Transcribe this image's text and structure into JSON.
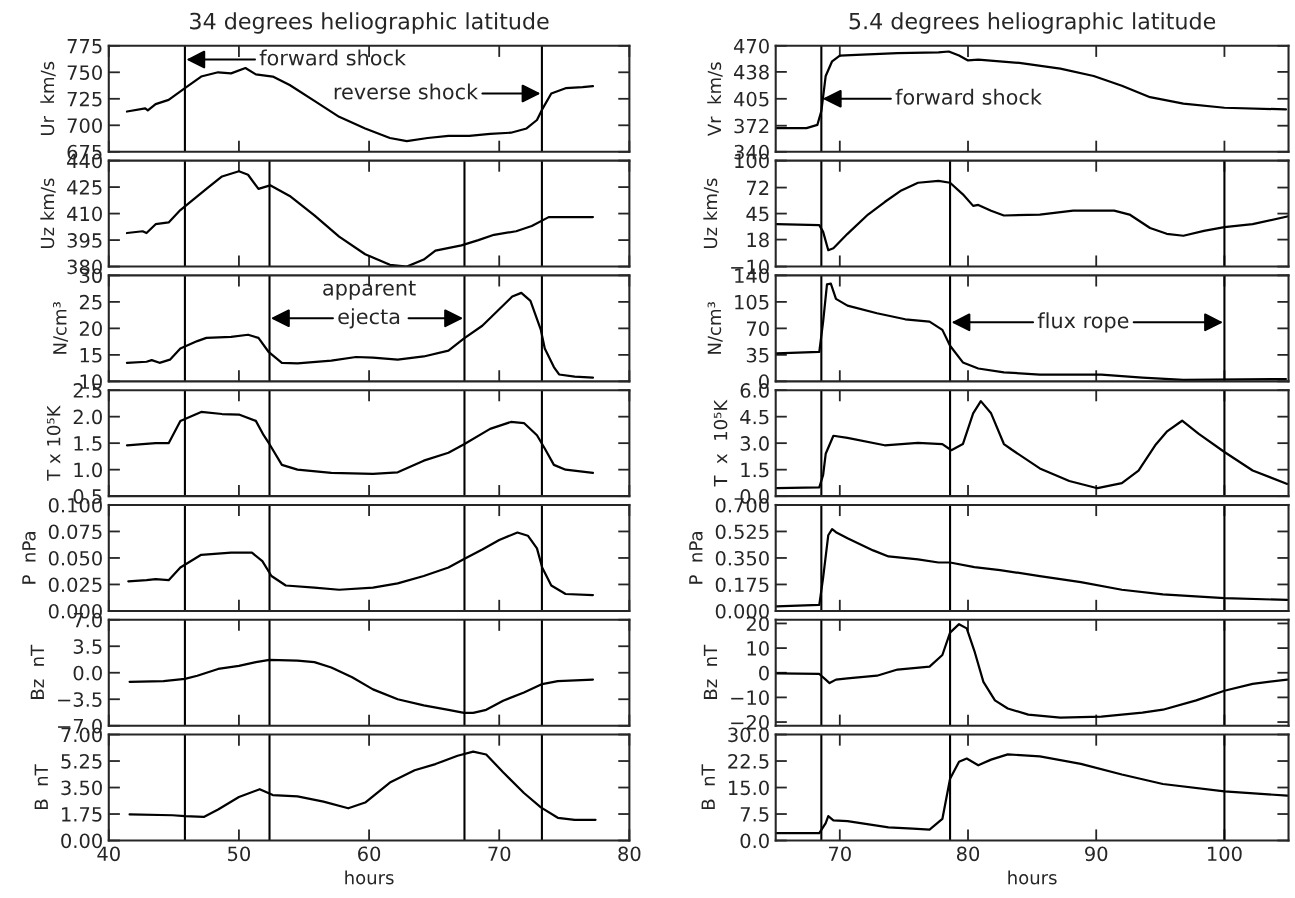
{
  "chart_data": [
    {
      "type": "line",
      "title": "34 degrees heliographic latitude",
      "ylabel": "Ur  km/s",
      "xlim": [
        40,
        80
      ],
      "xticks": [
        40,
        50,
        60,
        70,
        80
      ],
      "ylim": [
        675,
        775
      ],
      "yticks": [
        675,
        700,
        725,
        750,
        775
      ],
      "tick_labels": "y",
      "x": [
        41.4,
        42.8,
        43.0,
        43.6,
        44.6,
        45.85,
        47.1,
        48.4,
        49.4,
        50.5,
        51.3,
        52.6,
        53.9,
        55.8,
        57.7,
        59.7,
        61.6,
        62.9,
        64.5,
        66.1,
        67.7,
        69.3,
        70.9,
        72.1,
        72.9,
        73.3,
        74.0,
        75.1,
        76.4,
        77.2
      ],
      "series": [
        {
          "color": "#000000",
          "values": [
            713,
            716,
            714,
            720,
            724,
            735,
            746,
            750,
            749,
            754,
            748,
            746,
            738,
            723,
            708,
            697,
            688,
            685,
            688,
            690,
            690,
            692,
            693,
            697,
            705,
            715,
            730,
            735,
            736,
            737
          ]
        }
      ],
      "ref_lines": [
        {
          "axis": "x",
          "value": 45.85
        },
        {
          "axis": "x",
          "value": 73.28
        }
      ],
      "annotations": [
        "forward shock",
        "reverse shock"
      ]
    },
    {
      "type": "line",
      "ylabel": "Uz km/s",
      "xlim": [
        40,
        80
      ],
      "xticks": [
        40,
        50,
        60,
        70,
        80
      ],
      "ylim": [
        380,
        440
      ],
      "yticks": [
        380,
        395,
        410,
        425,
        440
      ],
      "tick_labels": "y",
      "x": [
        41.4,
        42.6,
        42.9,
        43.6,
        44.6,
        45.5,
        47.5,
        48.7,
        50.0,
        50.7,
        51.5,
        52.4,
        53.9,
        55.8,
        57.7,
        59.7,
        61.6,
        62.9,
        64.2,
        65.1,
        67.1,
        68.4,
        69.6,
        71.3,
        72.5,
        73.8,
        75.1,
        77.2
      ],
      "series": [
        {
          "color": "#000000",
          "values": [
            399,
            400,
            399,
            404,
            405,
            412,
            424,
            431,
            434,
            432,
            424,
            426,
            420,
            409,
            397,
            387,
            381,
            380,
            384,
            389,
            392,
            395,
            398,
            400,
            403,
            408,
            408,
            408
          ]
        }
      ],
      "ref_lines": [
        {
          "axis": "x",
          "value": 45.85
        },
        {
          "axis": "x",
          "value": 52.35
        },
        {
          "axis": "x",
          "value": 67.33
        },
        {
          "axis": "x",
          "value": 73.28
        }
      ]
    },
    {
      "type": "line",
      "ylabel": "N/cm³",
      "xlim": [
        40,
        80
      ],
      "xticks": [
        40,
        50,
        60,
        70,
        80
      ],
      "ylim": [
        10,
        30
      ],
      "yticks": [
        10,
        15,
        20,
        25,
        30
      ],
      "tick_labels": "y",
      "x": [
        41.4,
        42.9,
        43.3,
        43.9,
        44.7,
        45.5,
        46.8,
        47.5,
        49.4,
        50.7,
        51.5,
        52.3,
        53.3,
        54.5,
        57.1,
        59.0,
        60.3,
        62.2,
        64.2,
        66.1,
        67.3,
        68.7,
        70.0,
        71.0,
        71.7,
        72.4,
        73.2,
        73.5,
        74.2,
        74.6,
        75.8,
        77.2
      ],
      "series": [
        {
          "color": "#000000",
          "values": [
            13.5,
            13.7,
            14.0,
            13.5,
            14.1,
            16.2,
            17.6,
            18.2,
            18.4,
            18.8,
            18.2,
            15.5,
            13.5,
            13.4,
            13.9,
            14.6,
            14.5,
            14.1,
            14.7,
            15.8,
            18.1,
            20.5,
            23.6,
            26.0,
            26.7,
            25.2,
            19.7,
            16.2,
            12.7,
            11.3,
            10.9,
            10.7
          ]
        }
      ],
      "ref_lines": [
        {
          "axis": "x",
          "value": 45.85
        },
        {
          "axis": "x",
          "value": 52.35
        },
        {
          "axis": "x",
          "value": 67.33
        },
        {
          "axis": "x",
          "value": 73.28
        }
      ],
      "annotations": [
        "apparent",
        {
          "text": "ejecta",
          "x": 67.33,
          "y": 21.9
        }
      ]
    },
    {
      "type": "line",
      "ylabel": "T x 10⁵K",
      "xlim": [
        40,
        80
      ],
      "xticks": [
        40,
        50,
        60,
        70,
        80
      ],
      "ylim": [
        0.5,
        2.5
      ],
      "yticks": [
        {
          "value": 0.5,
          "label": "0.5"
        },
        {
          "value": 1.0,
          "label": "1.0"
        },
        {
          "value": 1.5,
          "label": "1.5"
        },
        {
          "value": 2.0,
          "label": "2.0"
        },
        {
          "value": 2.5,
          "label": "2.5"
        }
      ],
      "tick_labels": "y",
      "x": [
        41.4,
        42.6,
        43.6,
        44.6,
        45.5,
        47.1,
        48.7,
        50.0,
        51.3,
        51.9,
        52.35,
        53.3,
        54.5,
        57.1,
        60.3,
        62.2,
        64.2,
        66.1,
        67.3,
        69.3,
        70.9,
        71.9,
        72.9,
        73.5,
        74.2,
        75.1,
        77.2
      ],
      "series": [
        {
          "color": "#000000",
          "values": [
            1.46,
            1.48,
            1.5,
            1.5,
            1.92,
            2.09,
            2.05,
            2.04,
            1.92,
            1.65,
            1.48,
            1.09,
            1.0,
            0.94,
            0.92,
            0.95,
            1.17,
            1.32,
            1.48,
            1.77,
            1.9,
            1.88,
            1.65,
            1.4,
            1.09,
            1.0,
            0.94
          ]
        }
      ],
      "ref_lines": [
        {
          "axis": "x",
          "value": 45.85
        },
        {
          "axis": "x",
          "value": 52.35
        },
        {
          "axis": "x",
          "value": 67.33
        },
        {
          "axis": "x",
          "value": 73.28
        }
      ]
    },
    {
      "type": "line",
      "ylabel": "P  nPa",
      "xlim": [
        40,
        80
      ],
      "xticks": [
        40,
        50,
        60,
        70,
        80
      ],
      "ylim": [
        0,
        0.1
      ],
      "yticks": [
        {
          "value": 0,
          "label": "0.000"
        },
        {
          "value": 0.025,
          "label": "0.025"
        },
        {
          "value": 0.05,
          "label": "0.050"
        },
        {
          "value": 0.075,
          "label": "0.075"
        },
        {
          "value": 0.1,
          "label": "0.100"
        }
      ],
      "tick_labels": "y",
      "x": [
        41.5,
        42.9,
        43.6,
        44.6,
        45.5,
        47.1,
        49.4,
        51.0,
        51.8,
        52.5,
        53.6,
        55.8,
        57.7,
        60.3,
        62.2,
        64.2,
        66.1,
        67.3,
        68.7,
        70.0,
        71.4,
        72.2,
        72.9,
        73.3,
        74.0,
        75.1,
        77.2
      ],
      "series": [
        {
          "color": "#000000",
          "values": [
            0.028,
            0.029,
            0.03,
            0.029,
            0.041,
            0.053,
            0.055,
            0.055,
            0.047,
            0.033,
            0.024,
            0.022,
            0.02,
            0.022,
            0.026,
            0.033,
            0.041,
            0.049,
            0.058,
            0.067,
            0.074,
            0.071,
            0.059,
            0.041,
            0.024,
            0.016,
            0.015
          ]
        }
      ],
      "ref_lines": [
        {
          "axis": "x",
          "value": 45.85
        },
        {
          "axis": "x",
          "value": 52.35
        },
        {
          "axis": "x",
          "value": 67.33
        },
        {
          "axis": "x",
          "value": 73.28
        }
      ]
    },
    {
      "type": "line",
      "ylabel": "Bz  nT",
      "xlim": [
        40,
        80
      ],
      "xticks": [
        40,
        50,
        60,
        70,
        80
      ],
      "ylim": [
        -7,
        7
      ],
      "yticks": [
        {
          "value": -7,
          "label": "−7.0"
        },
        {
          "value": -3.5,
          "label": "−3.5"
        },
        {
          "value": 0,
          "label": "0.0"
        },
        {
          "value": 3.5,
          "label": "3.5"
        },
        {
          "value": 7,
          "label": "7.0"
        }
      ],
      "tick_labels": "y",
      "x": [
        41.6,
        44.2,
        45.85,
        46.8,
        48.4,
        50.0,
        51.3,
        52.35,
        54.5,
        55.8,
        57.1,
        58.7,
        60.3,
        62.2,
        64.2,
        66.1,
        67.3,
        68.0,
        69.0,
        70.3,
        71.9,
        73.3,
        74.5,
        77.2
      ],
      "series": [
        {
          "color": "#000000",
          "values": [
            -1.2,
            -1.1,
            -0.8,
            -0.4,
            0.5,
            0.9,
            1.4,
            1.7,
            1.6,
            1.4,
            0.7,
            -0.6,
            -2.2,
            -3.5,
            -4.3,
            -4.9,
            -5.3,
            -5.3,
            -4.9,
            -3.7,
            -2.6,
            -1.5,
            -1.1,
            -0.9
          ]
        }
      ],
      "ref_lines": [
        {
          "axis": "x",
          "value": 45.85
        },
        {
          "axis": "x",
          "value": 52.35
        },
        {
          "axis": "x",
          "value": 67.33
        },
        {
          "axis": "x",
          "value": 73.28
        }
      ]
    },
    {
      "type": "line",
      "ylabel": "B  nT",
      "xlabel": "hours",
      "xlim": [
        40,
        80
      ],
      "xticks": [
        40,
        50,
        60,
        70,
        80
      ],
      "ylim": [
        0,
        7
      ],
      "yticks": [
        {
          "value": 0,
          "label": "0.00"
        },
        {
          "value": 1.75,
          "label": "1.75"
        },
        {
          "value": 3.5,
          "label": "3.50"
        },
        {
          "value": 5.25,
          "label": "5.25"
        },
        {
          "value": 7,
          "label": "7.00"
        }
      ],
      "x": [
        41.6,
        44.9,
        45.85,
        47.3,
        48.4,
        50.0,
        51.6,
        52.6,
        54.5,
        56.5,
        58.4,
        59.7,
        61.6,
        63.5,
        65.1,
        66.8,
        68.0,
        69.0,
        70.3,
        71.9,
        73.2,
        74.5,
        75.8,
        77.4
      ],
      "series": [
        {
          "color": "#000000",
          "values": [
            1.72,
            1.67,
            1.61,
            1.56,
            2.05,
            2.87,
            3.39,
            3.0,
            2.92,
            2.57,
            2.13,
            2.51,
            3.83,
            4.64,
            5.05,
            5.6,
            5.87,
            5.68,
            4.51,
            3.14,
            2.19,
            1.5,
            1.37,
            1.37
          ]
        }
      ],
      "ref_lines": [
        {
          "axis": "x",
          "value": 45.85
        },
        {
          "axis": "x",
          "value": 52.35
        },
        {
          "axis": "x",
          "value": 67.33
        },
        {
          "axis": "x",
          "value": 73.28
        }
      ]
    },
    {
      "type": "line",
      "title": "5.4 degrees heliographic latitude",
      "ylabel": "Vr  km/s",
      "xlim": [
        65,
        105
      ],
      "xticks": [
        70,
        80,
        90,
        100
      ],
      "ylim": [
        340,
        470
      ],
      "yticks": [
        340,
        372,
        405,
        438,
        470
      ],
      "tick_labels": "y",
      "x": [
        65.06,
        67.4,
        68.25,
        68.56,
        68.9,
        69.4,
        70.0,
        71.3,
        74.5,
        77.7,
        78.5,
        79.3,
        80.0,
        80.8,
        84.0,
        87.2,
        89.8,
        92.0,
        94.2,
        96.8,
        100.0,
        104.8
      ],
      "series": [
        {
          "color": "#000000",
          "values": [
            369,
            369,
            373,
            390,
            433,
            451,
            458,
            459,
            461,
            462,
            463,
            458,
            452,
            453,
            449,
            442,
            433,
            421,
            407,
            399,
            394,
            392
          ]
        }
      ],
      "ref_lines": [
        {
          "axis": "x",
          "value": 68.56
        }
      ],
      "annotations": [
        "forward shock"
      ]
    },
    {
      "type": "line",
      "ylabel": "Uz km/s",
      "xlim": [
        65,
        105
      ],
      "xticks": [
        70,
        80,
        90,
        100
      ],
      "ylim": [
        -10,
        100
      ],
      "yticks": [
        {
          "value": -10,
          "label": "−10"
        },
        18,
        45,
        72,
        100
      ],
      "tick_labels": "y",
      "x": [
        65.06,
        68.4,
        68.7,
        69.1,
        69.5,
        70.6,
        72.2,
        73.5,
        74.8,
        76.1,
        77.7,
        78.6,
        79.6,
        80.4,
        80.8,
        81.8,
        82.8,
        85.6,
        88.2,
        91.4,
        92.6,
        94.2,
        95.5,
        96.8,
        98.4,
        100.0,
        102.2,
        104.9
      ],
      "series": [
        {
          "color": "#000000",
          "values": [
            34,
            33,
            26,
            7,
            9,
            24,
            44,
            57,
            69,
            77,
            79,
            77,
            65,
            53,
            54,
            48,
            43,
            44,
            48,
            48,
            44,
            30,
            24,
            22,
            27,
            31,
            34,
            42
          ]
        }
      ],
      "ref_lines": [
        {
          "axis": "x",
          "value": 68.56
        },
        {
          "axis": "x",
          "value": 78.6
        },
        {
          "axis": "x",
          "value": 100.0
        }
      ]
    },
    {
      "type": "line",
      "ylabel": "N/cm³",
      "xlim": [
        65,
        105
      ],
      "xticks": [
        70,
        80,
        90,
        100
      ],
      "ylim": [
        0,
        140
      ],
      "yticks": [
        0,
        35,
        70,
        105,
        140
      ],
      "tick_labels": "y",
      "x": [
        65.06,
        68.4,
        68.7,
        69.0,
        69.3,
        69.7,
        70.6,
        72.9,
        75.1,
        77.0,
        78.0,
        78.6,
        79.6,
        80.8,
        82.8,
        85.6,
        90.4,
        93.6,
        96.8,
        104.8
      ],
      "series": [
        {
          "color": "#000000",
          "values": [
            37,
            39,
            79,
            128,
            129,
            109,
            100,
            90,
            82,
            79,
            68,
            47,
            25,
            17,
            12,
            9,
            9,
            5,
            2,
            3
          ]
        }
      ],
      "ref_lines": [
        {
          "axis": "x",
          "value": 68.56
        },
        {
          "axis": "x",
          "value": 78.6
        },
        {
          "axis": "x",
          "value": 100.0
        }
      ],
      "annotations": [
        "flux rope"
      ]
    },
    {
      "type": "line",
      "ylabel": "T  x  10⁵K",
      "xlim": [
        65,
        105
      ],
      "xticks": [
        70,
        80,
        90,
        100
      ],
      "ylim": [
        0,
        6
      ],
      "yticks": [
        {
          "value": 0,
          "label": "0.0"
        },
        {
          "value": 1.5,
          "label": "1.5"
        },
        {
          "value": 3,
          "label": "3.0"
        },
        {
          "value": 4.5,
          "label": "4.5"
        },
        {
          "value": 6,
          "label": "6.0"
        }
      ],
      "tick_labels": "y",
      "x": [
        65.06,
        68.4,
        68.7,
        68.9,
        69.5,
        70.6,
        73.5,
        76.1,
        78.0,
        78.7,
        79.6,
        80.4,
        81.0,
        81.8,
        82.8,
        83.4,
        85.6,
        87.9,
        90.1,
        92.0,
        93.3,
        94.6,
        95.5,
        96.7,
        98.0,
        100.0,
        102.2,
        104.9
      ],
      "series": [
        {
          "color": "#000000",
          "values": [
            0.45,
            0.5,
            1.2,
            2.4,
            3.42,
            3.3,
            2.88,
            3.02,
            2.95,
            2.6,
            2.95,
            4.69,
            5.38,
            4.69,
            2.95,
            2.64,
            1.57,
            0.86,
            0.45,
            0.74,
            1.45,
            2.88,
            3.65,
            4.27,
            3.53,
            2.5,
            1.45,
            0.69
          ]
        }
      ],
      "ref_lines": [
        {
          "axis": "x",
          "value": 68.56
        },
        {
          "axis": "x",
          "value": 78.6
        },
        {
          "axis": "x",
          "value": 100.0
        }
      ]
    },
    {
      "type": "line",
      "ylabel": "P  nPa",
      "xlim": [
        65,
        105
      ],
      "xticks": [
        70,
        80,
        90,
        100
      ],
      "ylim": [
        0,
        0.7
      ],
      "yticks": [
        {
          "value": 0,
          "label": "0.000"
        },
        {
          "value": 0.175,
          "label": "0.175"
        },
        {
          "value": 0.35,
          "label": "0.350"
        },
        {
          "value": 0.525,
          "label": "0.525"
        },
        {
          "value": 0.7,
          "label": "0.700"
        }
      ],
      "tick_labels": "y",
      "x": [
        65.06,
        68.4,
        68.7,
        69.1,
        69.4,
        69.7,
        70.6,
        72.6,
        73.8,
        76.1,
        77.7,
        78.6,
        80.5,
        82.5,
        85.6,
        88.8,
        92.0,
        95.2,
        100.0,
        104.9
      ],
      "series": [
        {
          "color": "#000000",
          "values": [
            0.03,
            0.04,
            0.22,
            0.5,
            0.54,
            0.52,
            0.48,
            0.4,
            0.36,
            0.34,
            0.32,
            0.32,
            0.29,
            0.27,
            0.23,
            0.19,
            0.14,
            0.11,
            0.084,
            0.073
          ]
        }
      ],
      "ref_lines": [
        {
          "axis": "x",
          "value": 68.56
        },
        {
          "axis": "x",
          "value": 78.6
        },
        {
          "axis": "x",
          "value": 100.0
        }
      ]
    },
    {
      "type": "line",
      "ylabel": "Bz  nT",
      "xlim": [
        65,
        105
      ],
      "xticks": [
        70,
        80,
        90,
        100
      ],
      "ylim": [
        -21.5,
        21.5
      ],
      "yticks": [
        {
          "value": -20,
          "label": "−20"
        },
        {
          "value": -10,
          "label": "−10"
        },
        0,
        10,
        20
      ],
      "tick_labels": "y",
      "x": [
        65.06,
        68.4,
        68.9,
        69.2,
        69.7,
        70.6,
        72.9,
        74.5,
        77.0,
        78.0,
        78.6,
        79.3,
        79.9,
        80.5,
        81.2,
        82.1,
        83.1,
        84.7,
        87.2,
        90.4,
        93.6,
        95.2,
        97.8,
        100.0,
        102.2,
        104.9
      ],
      "series": [
        {
          "color": "#000000",
          "values": [
            -0.3,
            -0.5,
            -2.8,
            -4.2,
            -2.8,
            -2.3,
            -1.2,
            1.3,
            2.5,
            7.2,
            16.3,
            19.7,
            18,
            8.8,
            -3.7,
            -11.2,
            -14.5,
            -17,
            -18.2,
            -17.8,
            -16.2,
            -15,
            -11.2,
            -7.3,
            -4.5,
            -2.8
          ]
        }
      ],
      "ref_lines": [
        {
          "axis": "x",
          "value": 68.56
        },
        {
          "axis": "x",
          "value": 78.6
        },
        {
          "axis": "x",
          "value": 100.0
        }
      ]
    },
    {
      "type": "line",
      "ylabel": "B  nT",
      "xlabel": "hours",
      "xlim": [
        65,
        105
      ],
      "xticks": [
        70,
        80,
        90,
        100
      ],
      "ylim": [
        0,
        30
      ],
      "yticks": [
        {
          "value": 0,
          "label": "0.0"
        },
        {
          "value": 7.5,
          "label": "7.5"
        },
        {
          "value": 15,
          "label": "15.0"
        },
        {
          "value": 22.5,
          "label": "22.5"
        },
        {
          "value": 30,
          "label": "30.0"
        }
      ],
      "x": [
        65.06,
        68.4,
        68.9,
        69.1,
        69.5,
        70.6,
        73.8,
        75.7,
        77.0,
        78.0,
        78.6,
        79.3,
        79.9,
        80.8,
        81.8,
        83.1,
        85.6,
        88.8,
        92.0,
        95.2,
        100.0,
        104.9
      ],
      "series": [
        {
          "color": "#000000",
          "values": [
            2.1,
            2.1,
            4.9,
            6.9,
            5.7,
            5.5,
            3.7,
            3.4,
            3.1,
            6.1,
            17.5,
            22.3,
            23.2,
            21.3,
            22.9,
            24.4,
            23.8,
            21.7,
            18.7,
            16.0,
            13.9,
            12.7
          ]
        }
      ],
      "ref_lines": [
        {
          "axis": "x",
          "value": 68.56
        },
        {
          "axis": "x",
          "value": 78.6
        },
        {
          "axis": "x",
          "value": 100.0
        }
      ]
    }
  ]
}
